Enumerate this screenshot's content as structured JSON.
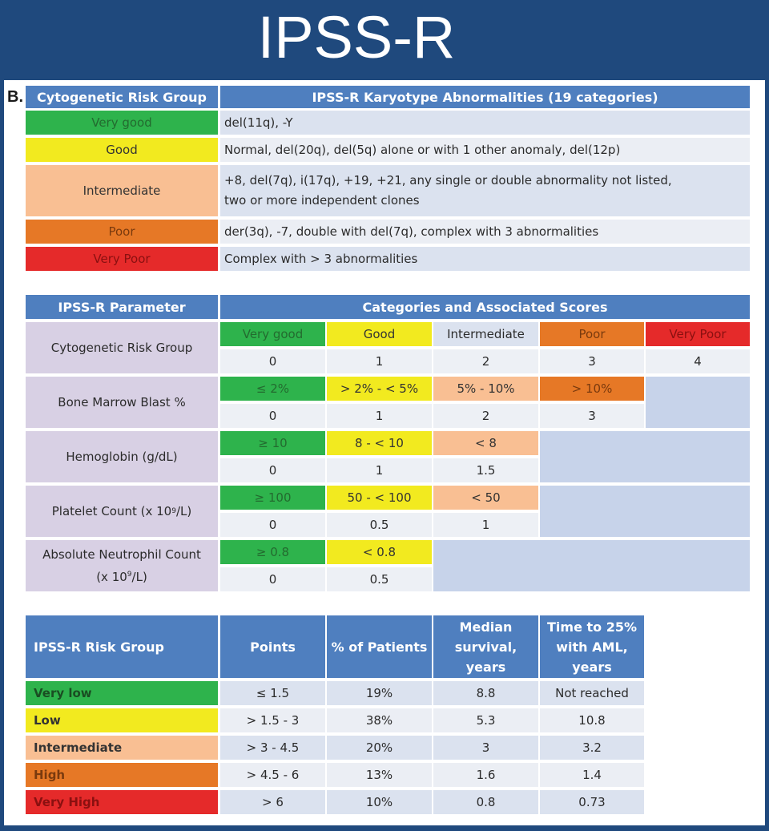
{
  "page": {
    "title": "IPSS-R",
    "section_label": "B."
  },
  "colors": {
    "very_good": "#2eb34c",
    "good": "#f2ea1f",
    "intermediate": "#f9bf93",
    "poor": "#e67826",
    "very_poor": "#e52a2a",
    "header": "#4f7fbf",
    "frame": "#1f497d"
  },
  "karyotype": {
    "headers": [
      "Cytogenetic Risk Group",
      "IPSS-R Karyotype Abnormalities (19 categories)"
    ],
    "rows": [
      {
        "group": "Very good",
        "text": "del(11q), -Y"
      },
      {
        "group": "Good",
        "text": "Normal, del(20q), del(5q) alone or with 1 other anomaly, del(12p)"
      },
      {
        "group": "Intermediate",
        "text": "+8, del(7q), i(17q), +19, +21, any single or double abnormality not listed, two or more independent clones"
      },
      {
        "group": "Poor",
        "text": "der(3q), -7, double with del(7q), complex with 3 abnormalities"
      },
      {
        "group": "Very Poor",
        "text": "Complex with > 3 abnormalities"
      }
    ]
  },
  "parameters": {
    "headers": [
      "IPSS-R Parameter",
      "Categories and Associated Scores"
    ],
    "cytogenetic": {
      "label": "Cytogenetic Risk Group",
      "cats": [
        "Very good",
        "Good",
        "Intermediate",
        "Poor",
        "Very Poor"
      ],
      "scores": [
        "0",
        "1",
        "2",
        "3",
        "4"
      ]
    },
    "blast": {
      "label": "Bone Marrow Blast %",
      "cats": [
        "≤ 2%",
        "> 2% - < 5%",
        "5% - 10%",
        "> 10%"
      ],
      "scores": [
        "0",
        "1",
        "2",
        "3"
      ]
    },
    "hemoglobin": {
      "label": "Hemoglobin (g/dL)",
      "cats": [
        "≥ 10",
        "8 - < 10",
        "< 8"
      ],
      "scores": [
        "0",
        "1",
        "1.5"
      ]
    },
    "platelet": {
      "label_main": "Platelet Count (x 10",
      "label_sup": "9",
      "label_end": "/L)",
      "cats": [
        "≥ 100",
        "50 - < 100",
        "< 50"
      ],
      "scores": [
        "0",
        "0.5",
        "1"
      ]
    },
    "anc": {
      "label_line1": "Absolute Neutrophil Count",
      "label_main": "(x 10",
      "label_sup": "9",
      "label_end": "/L)",
      "cats": [
        "≥ 0.8",
        "< 0.8"
      ],
      "scores": [
        "0",
        "0.5"
      ]
    }
  },
  "risk": {
    "headers": [
      "IPSS-R Risk Group",
      "Points",
      "% of Patients",
      "Median survival, years",
      "Time to 25% with AML, years"
    ],
    "rows": [
      {
        "group": "Very low",
        "points": "≤ 1.5",
        "pct": "19%",
        "survival": "8.8",
        "aml": "Not reached"
      },
      {
        "group": "Low",
        "points": "> 1.5 - 3",
        "pct": "38%",
        "survival": "5.3",
        "aml": "10.8"
      },
      {
        "group": "Intermediate",
        "points": "> 3 - 4.5",
        "pct": "20%",
        "survival": "3",
        "aml": "3.2"
      },
      {
        "group": "High",
        "points": "> 4.5 - 6",
        "pct": "13%",
        "survival": "1.6",
        "aml": "1.4"
      },
      {
        "group": "Very High",
        "points": "> 6",
        "pct": "10%",
        "survival": "0.8",
        "aml": "0.73"
      }
    ]
  }
}
